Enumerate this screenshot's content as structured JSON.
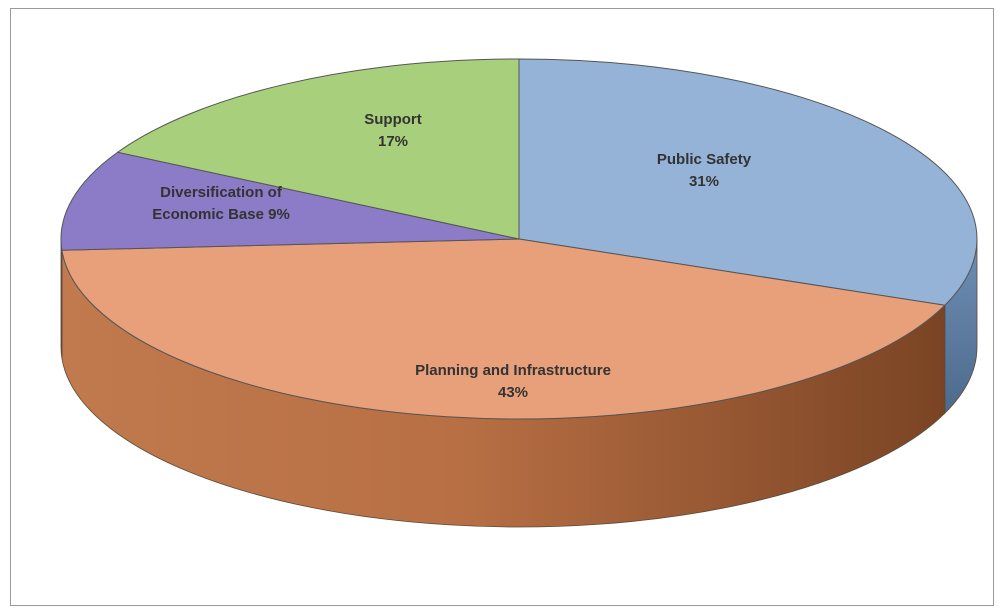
{
  "chart_data": {
    "type": "pie",
    "title": "",
    "legend": "none",
    "slices": [
      {
        "name": "Public Safety",
        "value": 31,
        "label_lines": [
          "Public Safety",
          "31%"
        ],
        "color": "#95b3d7"
      },
      {
        "name": "Planning and Infrastructure",
        "value": 43,
        "label_lines": [
          "Planning and Infrastructure",
          "43%"
        ],
        "color": "#e8a07a"
      },
      {
        "name": "Diversification of Economic Base",
        "value": 9,
        "label_lines": [
          "Diversification of",
          "Economic Base 9%"
        ],
        "color": "#8c7bc6"
      },
      {
        "name": "Support",
        "value": 17,
        "label_lines": [
          "Support",
          "17%"
        ],
        "color": "#a8cf7b"
      }
    ]
  }
}
